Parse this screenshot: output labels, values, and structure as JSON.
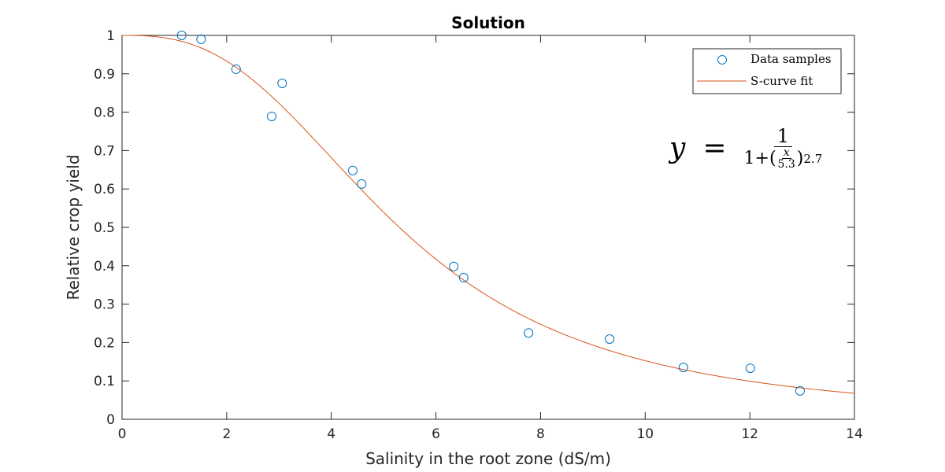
{
  "chart_data": {
    "type": "scatter",
    "title": "Solution",
    "xlabel": "Salinity in the root zone (dS/m)",
    "ylabel": "Relative crop yield",
    "xlim": [
      0,
      14
    ],
    "ylim": [
      0,
      1
    ],
    "xticks": [
      "0",
      "2",
      "4",
      "6",
      "8",
      "10",
      "12",
      "14"
    ],
    "yticks": [
      "0",
      "0.1",
      "0.2",
      "0.3",
      "0.4",
      "0.5",
      "0.6",
      "0.7",
      "0.8",
      "0.9",
      "1"
    ],
    "grid": false,
    "legend": {
      "placement": "top-right",
      "entries": [
        "Data samples",
        "S-curve fit"
      ]
    },
    "series": [
      {
        "name": "Data samples",
        "kind": "scatter",
        "color": "#0072BD",
        "x": [
          1.14,
          1.51,
          2.18,
          2.86,
          3.06,
          4.41,
          4.58,
          6.34,
          6.53,
          7.77,
          9.32,
          10.73,
          12.01,
          12.96
        ],
        "y": [
          1.0,
          0.99,
          0.912,
          0.789,
          0.875,
          0.648,
          0.613,
          0.398,
          0.369,
          0.225,
          0.209,
          0.135,
          0.133,
          0.074
        ]
      },
      {
        "name": "S-curve fit",
        "kind": "line",
        "color": "#D95319",
        "model": "y = 1/(1+(x/x50)^p)",
        "x50": 5.3,
        "p": 2.7
      }
    ],
    "annotation": {
      "lhs": "y",
      "eq": "=",
      "num": "1",
      "one_plus": "1+(",
      "x": "x",
      "div": "5.3",
      "close": ")",
      "exp": "2.7"
    }
  }
}
